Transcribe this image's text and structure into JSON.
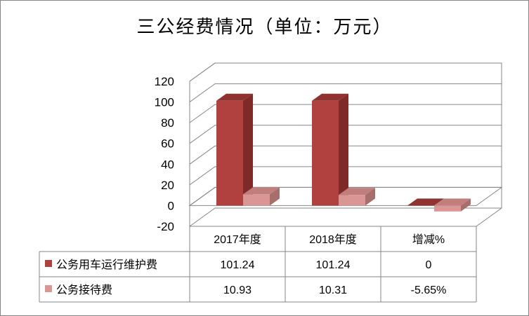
{
  "title": "三公经费情况（单位：万元）",
  "colors": {
    "series_1": "#b0413e",
    "series_1_side": "#7e2a28",
    "series_1_top": "#8f3230",
    "series_2": "#d99694",
    "series_2_side": "#a86e6c",
    "series_2_top": "#c07e7c",
    "grid": "#868686"
  },
  "chart_data": {
    "type": "bar",
    "style": "3d-clustered-column-with-data-table",
    "title": "三公经费情况（单位：万元）",
    "categories": [
      "2017年度",
      "2018年度",
      "增减%"
    ],
    "series": [
      {
        "name": "公务用车运行维护费",
        "values": [
          101.24,
          101.24,
          0
        ],
        "labels": [
          "101.24",
          "101.24",
          "0"
        ]
      },
      {
        "name": "公务接待费",
        "values": [
          10.93,
          10.31,
          -5.65
        ],
        "labels": [
          "10.93",
          "10.31",
          "-5.65%"
        ]
      }
    ],
    "ylim": [
      -20,
      120
    ],
    "yticks": [
      "120",
      "100",
      "80",
      "60",
      "40",
      "20",
      "0",
      "-20"
    ],
    "grid": true,
    "legend": "data-table-left"
  }
}
